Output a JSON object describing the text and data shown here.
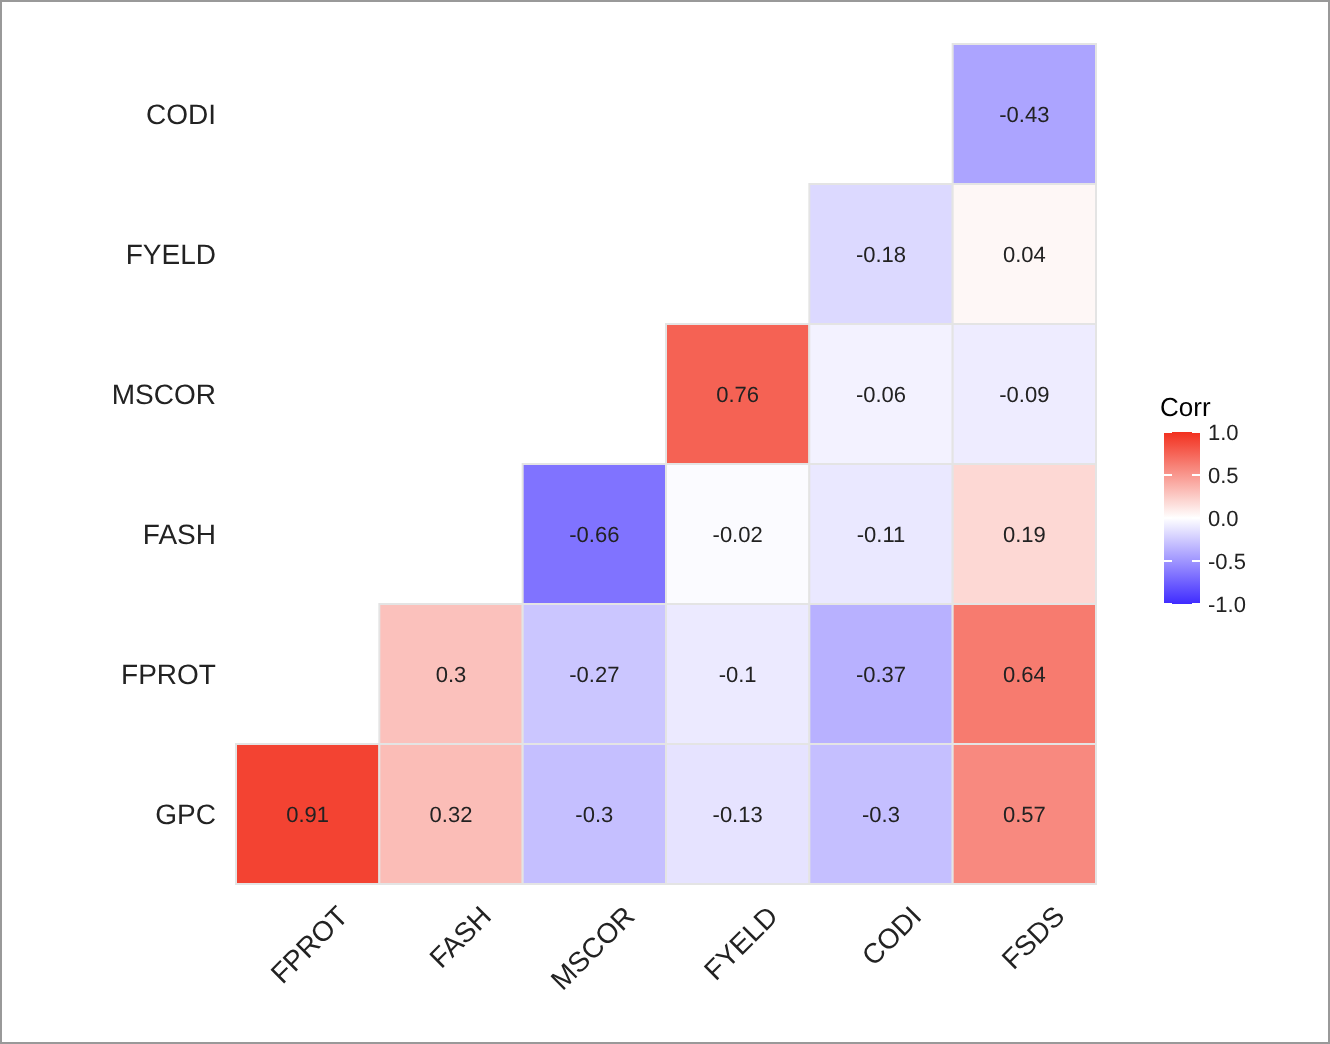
{
  "chart_data": {
    "type": "heatmap",
    "categories": [
      "FPROT",
      "FASH",
      "MSCOR",
      "FYELD",
      "CODI",
      "FSDS"
    ],
    "y_categories": [
      "CODI",
      "FYELD",
      "MSCOR",
      "FASH",
      "FPROT",
      "GPC"
    ],
    "cells": [
      [
        null,
        null,
        null,
        null,
        null,
        -0.43
      ],
      [
        null,
        null,
        null,
        null,
        -0.18,
        0.04
      ],
      [
        null,
        null,
        null,
        0.76,
        -0.06,
        -0.09
      ],
      [
        null,
        null,
        -0.66,
        -0.02,
        -0.11,
        0.19
      ],
      [
        null,
        0.3,
        -0.27,
        -0.1,
        -0.37,
        0.64
      ],
      [
        0.91,
        0.32,
        -0.3,
        -0.13,
        -0.3,
        0.57
      ]
    ],
    "data_labels": true,
    "clabel": "Corr",
    "clim": [
      -1,
      1
    ],
    "cticks": [
      {
        "value": 1,
        "label": "1.0"
      },
      0.5,
      {
        "value": 0,
        "label": "0.0"
      },
      -0.5,
      {
        "value": -1,
        "label": "-1.0"
      }
    ]
  }
}
